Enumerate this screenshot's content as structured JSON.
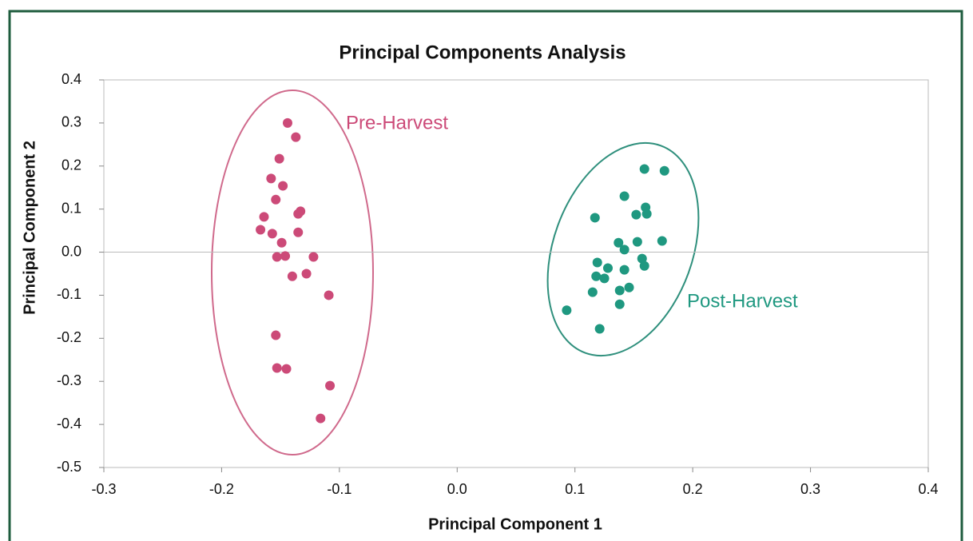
{
  "chart_data": {
    "type": "scatter",
    "title": "Principal Components Analysis",
    "xlabel": "Principal Component 1",
    "ylabel": "Principal Component 2",
    "xlim": [
      -0.3,
      0.4
    ],
    "ylim": [
      -0.5,
      0.4
    ],
    "xticks": [
      -0.3,
      -0.2,
      -0.1,
      {
        "value": 0,
        "label": "0.0"
      },
      0.1,
      0.2,
      0.3,
      0.4
    ],
    "yticks": [
      -0.5,
      -0.4,
      -0.3,
      -0.2,
      -0.1,
      {
        "value": 0,
        "label": "0.0"
      },
      0.1,
      0.2,
      0.3,
      0.4
    ],
    "annotations": [
      "Pre-Harvest",
      "Post-Harvest"
    ],
    "series": [
      {
        "name": "Pre-Harvest",
        "color": "#cc4a78",
        "x": [
          -0.144,
          -0.137,
          -0.151,
          -0.158,
          -0.148,
          -0.154,
          -0.133,
          -0.135,
          -0.164,
          -0.167,
          -0.157,
          -0.135,
          -0.149,
          -0.153,
          -0.146,
          -0.122,
          -0.14,
          -0.128,
          -0.109,
          -0.154,
          -0.153,
          -0.145,
          -0.108,
          -0.116
        ],
        "values": [
          0.3,
          0.267,
          0.217,
          0.171,
          0.154,
          0.122,
          0.095,
          0.089,
          0.082,
          0.052,
          0.043,
          0.046,
          0.022,
          -0.011,
          -0.009,
          -0.011,
          -0.056,
          -0.05,
          -0.1,
          -0.193,
          -0.269,
          -0.271,
          -0.31,
          -0.386
        ]
      },
      {
        "name": "Post-Harvest",
        "color": "#1f9880",
        "x": [
          0.159,
          0.176,
          0.142,
          0.16,
          0.117,
          0.152,
          0.161,
          0.137,
          0.153,
          0.174,
          0.142,
          0.119,
          0.157,
          0.159,
          0.128,
          0.142,
          0.118,
          0.125,
          0.146,
          0.138,
          0.115,
          0.138,
          0.093,
          0.121
        ],
        "values": [
          0.193,
          0.189,
          0.13,
          0.104,
          0.08,
          0.087,
          0.089,
          0.022,
          0.024,
          0.026,
          0.006,
          -0.024,
          -0.015,
          -0.032,
          -0.037,
          -0.041,
          -0.056,
          -0.061,
          -0.082,
          -0.089,
          -0.093,
          -0.121,
          -0.135,
          -0.178
        ]
      }
    ]
  }
}
